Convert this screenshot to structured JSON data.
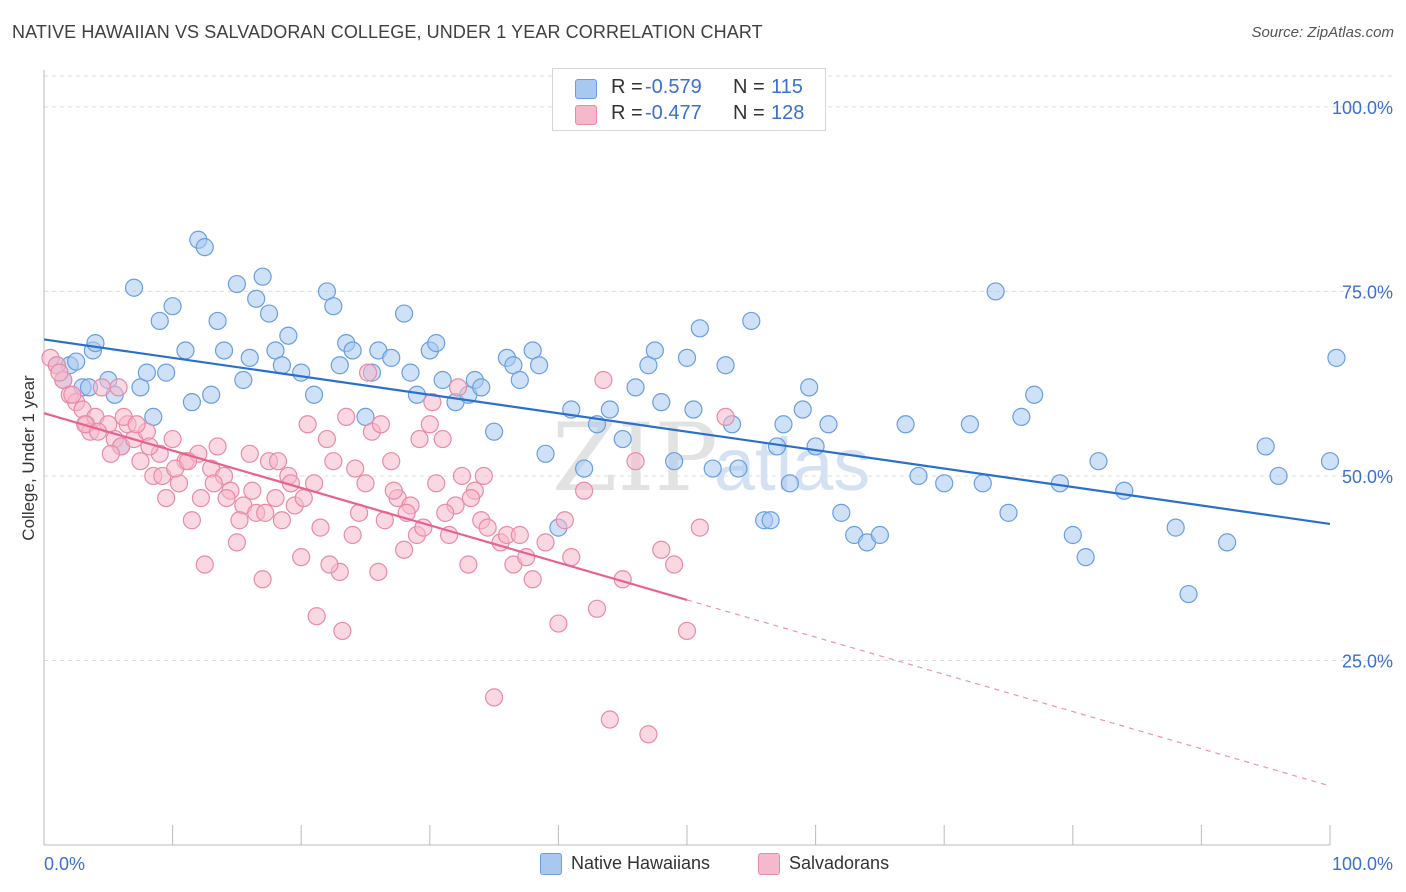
{
  "title": "NATIVE HAWAIIAN VS SALVADORAN COLLEGE, UNDER 1 YEAR CORRELATION CHART",
  "source": "Source: ZipAtlas.com",
  "watermark": {
    "zip": "ZIP",
    "atlas": "atlas"
  },
  "legend": {
    "rows": [
      {
        "r_label": "R =",
        "r_value": "-0.579",
        "n_label": "N =",
        "n_value": "115"
      },
      {
        "r_label": "R =",
        "r_value": "-0.477",
        "n_label": "N =",
        "n_value": "128"
      }
    ]
  },
  "bottom_legend": [
    "Native Hawaiians",
    "Salvadorans"
  ],
  "colors": {
    "blue_fill": "#a8c8f0",
    "blue_stroke": "#6a9ee0",
    "blue_line": "#2a6fce",
    "pink_fill": "#f6b8cb",
    "pink_stroke": "#e88aa8",
    "pink_line": "#e8628f",
    "tick_label": "#3b6fd0",
    "grid": "#dcdcdc"
  },
  "chart_data": {
    "type": "scatter",
    "title": "NATIVE HAWAIIAN VS SALVADORAN COLLEGE, UNDER 1 YEAR CORRELATION CHART",
    "xlabel": "",
    "ylabel": "College, Under 1 year",
    "xlim": [
      0,
      100
    ],
    "ylim": [
      0,
      105
    ],
    "x_tick_labels": [
      "0.0%",
      "100.0%"
    ],
    "y_ticks": [
      25,
      50,
      75,
      100
    ],
    "y_tick_labels": [
      "25.0%",
      "50.0%",
      "75.0%",
      "100.0%"
    ],
    "grid": true,
    "series": [
      {
        "name": "Native Hawaiians",
        "color": "#a8c8f0",
        "trend": {
          "x0": 0,
          "y0": 68.5,
          "x1": 100,
          "y1": 43.5
        },
        "points": [
          [
            1,
            65
          ],
          [
            1.5,
            63
          ],
          [
            2,
            65
          ],
          [
            2.5,
            65.5
          ],
          [
            3,
            62
          ],
          [
            3.5,
            62
          ],
          [
            3.8,
            67
          ],
          [
            4,
            68
          ],
          [
            5,
            63
          ],
          [
            5.5,
            61
          ],
          [
            6,
            54
          ],
          [
            7,
            75.5
          ],
          [
            7.5,
            62
          ],
          [
            8,
            64
          ],
          [
            8.5,
            58
          ],
          [
            9,
            71
          ],
          [
            9.5,
            64
          ],
          [
            10,
            73
          ],
          [
            11,
            67
          ],
          [
            11.5,
            60
          ],
          [
            12,
            82
          ],
          [
            12.5,
            81
          ],
          [
            13,
            61
          ],
          [
            13.5,
            71
          ],
          [
            14,
            67
          ],
          [
            15,
            76
          ],
          [
            15.5,
            63
          ],
          [
            16,
            66
          ],
          [
            16.5,
            74
          ],
          [
            17,
            77
          ],
          [
            17.5,
            72
          ],
          [
            18,
            67
          ],
          [
            18.5,
            65
          ],
          [
            19,
            69
          ],
          [
            20,
            64
          ],
          [
            21,
            61
          ],
          [
            22,
            75
          ],
          [
            22.5,
            73
          ],
          [
            23,
            65
          ],
          [
            23.5,
            68
          ],
          [
            24,
            67
          ],
          [
            25,
            58
          ],
          [
            25.5,
            64
          ],
          [
            26,
            67
          ],
          [
            27,
            66
          ],
          [
            28,
            72
          ],
          [
            28.5,
            64
          ],
          [
            29,
            61
          ],
          [
            30,
            67
          ],
          [
            30.5,
            68
          ],
          [
            31,
            63
          ],
          [
            32,
            60
          ],
          [
            33,
            61
          ],
          [
            33.5,
            63
          ],
          [
            34,
            62
          ],
          [
            35,
            56
          ],
          [
            36,
            66
          ],
          [
            36.5,
            65
          ],
          [
            37,
            63
          ],
          [
            38,
            67
          ],
          [
            38.5,
            65
          ],
          [
            39,
            53
          ],
          [
            40,
            43
          ],
          [
            41,
            59
          ],
          [
            42,
            51
          ],
          [
            43,
            57
          ],
          [
            44,
            59
          ],
          [
            45,
            55
          ],
          [
            46,
            62
          ],
          [
            47,
            65
          ],
          [
            47.5,
            67
          ],
          [
            48,
            60
          ],
          [
            49,
            52
          ],
          [
            50,
            66
          ],
          [
            50.5,
            59
          ],
          [
            51,
            70
          ],
          [
            52,
            51
          ],
          [
            53,
            65
          ],
          [
            53.5,
            57
          ],
          [
            54,
            51
          ],
          [
            55,
            71
          ],
          [
            56,
            44
          ],
          [
            56.5,
            44
          ],
          [
            57,
            54
          ],
          [
            57.5,
            57
          ],
          [
            58,
            49
          ],
          [
            59,
            59
          ],
          [
            59.5,
            62
          ],
          [
            60,
            54
          ],
          [
            61,
            57
          ],
          [
            62,
            45
          ],
          [
            63,
            42
          ],
          [
            64,
            41
          ],
          [
            65,
            42
          ],
          [
            67,
            57
          ],
          [
            68,
            50
          ],
          [
            70,
            49
          ],
          [
            72,
            57
          ],
          [
            73,
            49
          ],
          [
            74,
            75
          ],
          [
            75,
            45
          ],
          [
            76,
            58
          ],
          [
            77,
            61
          ],
          [
            79,
            49
          ],
          [
            80,
            42
          ],
          [
            81,
            39
          ],
          [
            82,
            52
          ],
          [
            84,
            48
          ],
          [
            88,
            43
          ],
          [
            89,
            34
          ],
          [
            92,
            41
          ],
          [
            95,
            54
          ],
          [
            96,
            50
          ],
          [
            100,
            52
          ],
          [
            100.5,
            66
          ]
        ]
      },
      {
        "name": "Salvadorans",
        "color": "#f6b8cb",
        "trend": {
          "x0": 0,
          "y0": 58.5,
          "x1": 50,
          "y1": 33.2,
          "dash_to_x": 100,
          "dash_to_y": 8
        },
        "points": [
          [
            0.5,
            66
          ],
          [
            1,
            65
          ],
          [
            1.5,
            63
          ],
          [
            2,
            61
          ],
          [
            2.5,
            60
          ],
          [
            3,
            59
          ],
          [
            3.3,
            57
          ],
          [
            3.6,
            56
          ],
          [
            4,
            58
          ],
          [
            4.5,
            62
          ],
          [
            5,
            57
          ],
          [
            5.5,
            55
          ],
          [
            6,
            54
          ],
          [
            6.5,
            57
          ],
          [
            7,
            55
          ],
          [
            7.5,
            52
          ],
          [
            8,
            56
          ],
          [
            8.5,
            50
          ],
          [
            9,
            53
          ],
          [
            9.5,
            47
          ],
          [
            10,
            55
          ],
          [
            10.5,
            49
          ],
          [
            11,
            52
          ],
          [
            11.5,
            44
          ],
          [
            12,
            53
          ],
          [
            12.5,
            38
          ],
          [
            13,
            51
          ],
          [
            13.5,
            54
          ],
          [
            14,
            50
          ],
          [
            14.5,
            48
          ],
          [
            15,
            41
          ],
          [
            15.5,
            46
          ],
          [
            16,
            53
          ],
          [
            16.5,
            45
          ],
          [
            17,
            36
          ],
          [
            17.5,
            52
          ],
          [
            18,
            47
          ],
          [
            18.5,
            44
          ],
          [
            19,
            50
          ],
          [
            19.5,
            46
          ],
          [
            20,
            39
          ],
          [
            20.5,
            57
          ],
          [
            21,
            49
          ],
          [
            21.5,
            43
          ],
          [
            22,
            55
          ],
          [
            22.5,
            52
          ],
          [
            23,
            37
          ],
          [
            23.5,
            58
          ],
          [
            24,
            42
          ],
          [
            24.5,
            45
          ],
          [
            25,
            49
          ],
          [
            25.5,
            56
          ],
          [
            26,
            37
          ],
          [
            26.5,
            44
          ],
          [
            27,
            52
          ],
          [
            27.5,
            47
          ],
          [
            28,
            40
          ],
          [
            28.5,
            46
          ],
          [
            29,
            42
          ],
          [
            29.5,
            43
          ],
          [
            30,
            57
          ],
          [
            30.5,
            49
          ],
          [
            31,
            55
          ],
          [
            31.5,
            42
          ],
          [
            32,
            46
          ],
          [
            32.5,
            50
          ],
          [
            33,
            38
          ],
          [
            33.5,
            48
          ],
          [
            34,
            44
          ],
          [
            34.5,
            43
          ],
          [
            35,
            20
          ],
          [
            35.5,
            41
          ],
          [
            36,
            42
          ],
          [
            36.5,
            38
          ],
          [
            37,
            42
          ],
          [
            37.5,
            39
          ],
          [
            38,
            36
          ],
          [
            39,
            41
          ],
          [
            40,
            30
          ],
          [
            40.5,
            44
          ],
          [
            41,
            39
          ],
          [
            42,
            48
          ],
          [
            43,
            32
          ],
          [
            44,
            17
          ],
          [
            45,
            36
          ],
          [
            46,
            52
          ],
          [
            47,
            15
          ],
          [
            48,
            40
          ],
          [
            49,
            38
          ],
          [
            50,
            29
          ],
          [
            1.2,
            64
          ],
          [
            2.2,
            61
          ],
          [
            3.2,
            57
          ],
          [
            4.2,
            56
          ],
          [
            5.2,
            53
          ],
          [
            6.2,
            58
          ],
          [
            7.2,
            57
          ],
          [
            8.2,
            54
          ],
          [
            9.2,
            50
          ],
          [
            10.2,
            51
          ],
          [
            11.2,
            52
          ],
          [
            12.2,
            47
          ],
          [
            13.2,
            49
          ],
          [
            14.2,
            47
          ],
          [
            15.2,
            44
          ],
          [
            16.2,
            48
          ],
          [
            17.2,
            45
          ],
          [
            18.2,
            52
          ],
          [
            19.2,
            49
          ],
          [
            20.2,
            47
          ],
          [
            21.2,
            31
          ],
          [
            22.2,
            38
          ],
          [
            23.2,
            29
          ],
          [
            24.2,
            51
          ],
          [
            25.2,
            64
          ],
          [
            26.2,
            57
          ],
          [
            27.2,
            48
          ],
          [
            28.2,
            45
          ],
          [
            29.2,
            55
          ],
          [
            30.2,
            60
          ],
          [
            31.2,
            45
          ],
          [
            32.2,
            62
          ],
          [
            33.2,
            47
          ],
          [
            34.2,
            50
          ],
          [
            43.5,
            63
          ],
          [
            51,
            43
          ],
          [
            53,
            58
          ],
          [
            5.8,
            62
          ]
        ]
      }
    ]
  }
}
